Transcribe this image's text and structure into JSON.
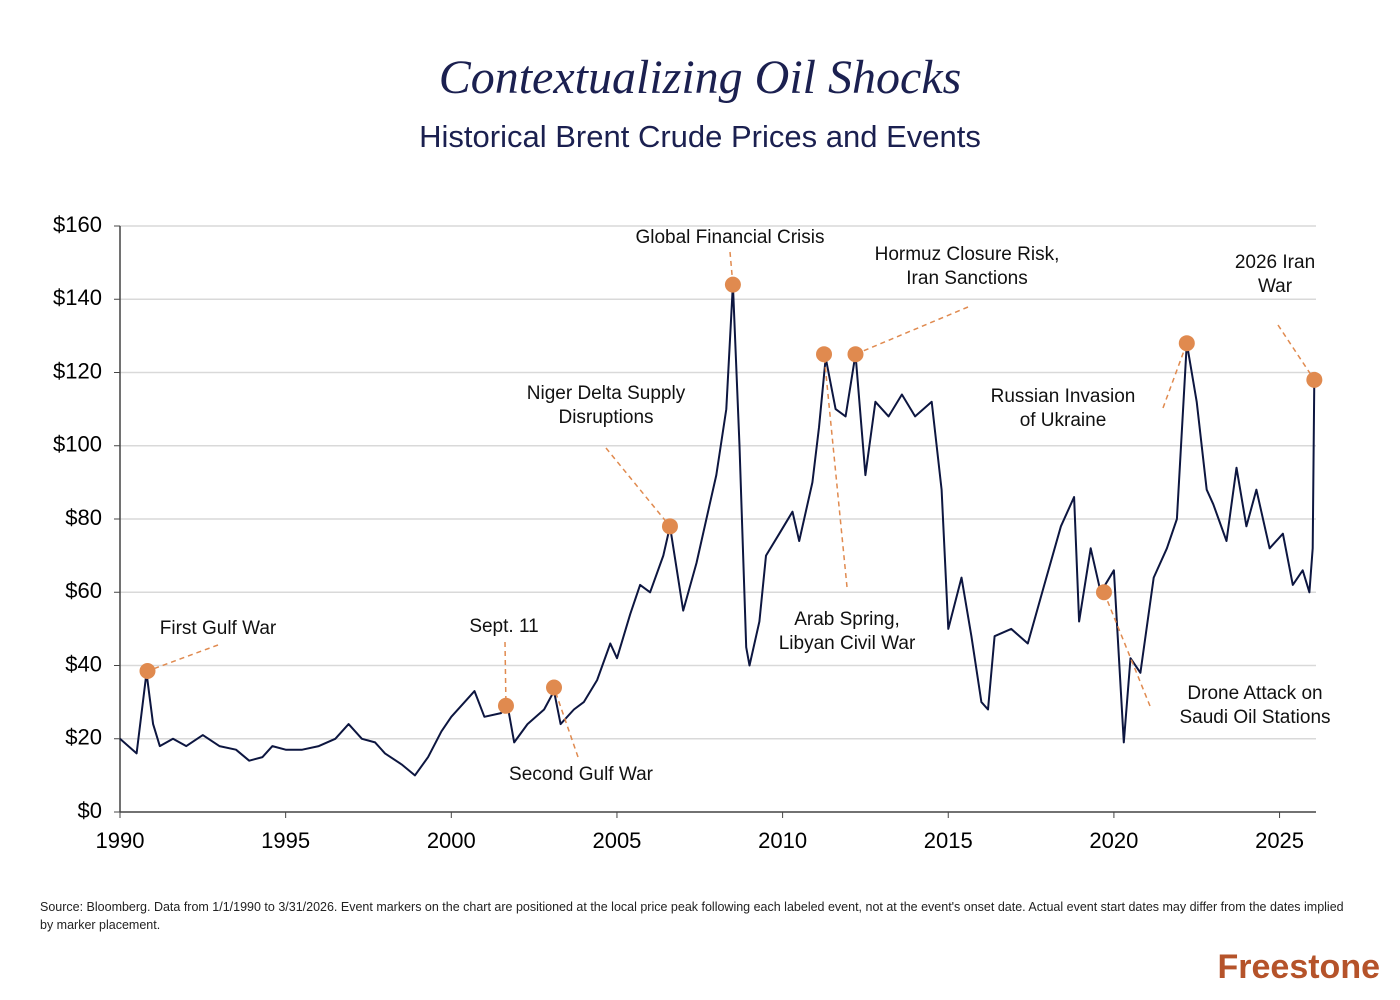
{
  "chart_data": {
    "type": "line",
    "title": "Contextualizing Oil Shocks",
    "subtitle": "Historical Brent Crude Prices and Events",
    "color": "#0d1640",
    "marker_color": "#e08a4f",
    "grid": true,
    "xlim": [
      1990,
      2026.1
    ],
    "xticks": [
      1990,
      1995,
      2000,
      2005,
      2010,
      2015,
      2020,
      2025
    ],
    "ylim": [
      0,
      160
    ],
    "yticks": [
      {
        "value": 0,
        "label": "$0"
      },
      {
        "value": 20,
        "label": "$20"
      },
      {
        "value": 40,
        "label": "$40"
      },
      {
        "value": 60,
        "label": "$60"
      },
      {
        "value": 80,
        "label": "$80"
      },
      {
        "value": 100,
        "label": "$100"
      },
      {
        "value": 120,
        "label": "$120"
      },
      {
        "value": 140,
        "label": "$140"
      },
      {
        "value": 160,
        "label": "$160"
      }
    ],
    "x": [
      1990.0,
      1990.5,
      1990.8,
      1991.0,
      1991.2,
      1991.6,
      1992.0,
      1992.5,
      1993.0,
      1993.5,
      1993.9,
      1994.3,
      1994.6,
      1995.0,
      1995.5,
      1996.0,
      1996.5,
      1996.9,
      1997.3,
      1997.7,
      1998.0,
      1998.5,
      1998.9,
      1999.3,
      1999.7,
      2000.0,
      2000.4,
      2000.7,
      2001.0,
      2001.5,
      2001.7,
      2001.9,
      2002.3,
      2002.8,
      2003.1,
      2003.3,
      2003.7,
      2004.0,
      2004.4,
      2004.8,
      2005.0,
      2005.4,
      2005.7,
      2006.0,
      2006.4,
      2006.6,
      2007.0,
      2007.4,
      2007.8,
      2008.0,
      2008.3,
      2008.5,
      2008.7,
      2008.9,
      2009.0,
      2009.3,
      2009.5,
      2009.9,
      2010.3,
      2010.5,
      2010.9,
      2011.1,
      2011.3,
      2011.6,
      2011.9,
      2012.2,
      2012.5,
      2012.8,
      2013.2,
      2013.6,
      2014.0,
      2014.5,
      2014.8,
      2015.0,
      2015.4,
      2015.7,
      2016.0,
      2016.2,
      2016.4,
      2016.9,
      2017.4,
      2017.9,
      2018.4,
      2018.8,
      2018.95,
      2019.3,
      2019.6,
      2020.0,
      2020.3,
      2020.5,
      2020.8,
      2021.2,
      2021.6,
      2021.9,
      2022.2,
      2022.5,
      2022.8,
      2023.0,
      2023.4,
      2023.7,
      2024.0,
      2024.3,
      2024.7,
      2025.1,
      2025.4,
      2025.7,
      2025.9,
      2026.0,
      2026.05
    ],
    "values": [
      20,
      16,
      38,
      24,
      18,
      20,
      18,
      21,
      18,
      17,
      14,
      15,
      18,
      17,
      17,
      18,
      20,
      24,
      20,
      19,
      16,
      13,
      10,
      15,
      22,
      26,
      30,
      33,
      26,
      27,
      29,
      19,
      24,
      28,
      33,
      24,
      28,
      30,
      36,
      46,
      42,
      54,
      62,
      60,
      70,
      78,
      55,
      68,
      84,
      92,
      110,
      144,
      100,
      45,
      40,
      52,
      70,
      76,
      82,
      74,
      90,
      105,
      124,
      110,
      108,
      125,
      92,
      112,
      108,
      114,
      108,
      112,
      88,
      50,
      64,
      48,
      30,
      28,
      48,
      50,
      46,
      62,
      78,
      86,
      52,
      72,
      60,
      66,
      19,
      42,
      38,
      64,
      72,
      80,
      128,
      112,
      88,
      84,
      74,
      94,
      78,
      88,
      72,
      76,
      62,
      66,
      60,
      72,
      118
    ],
    "events": [
      {
        "label": [
          "First Gulf War"
        ],
        "x": 1990.83,
        "y": 38.5
      },
      {
        "label": [
          "Sept. 11"
        ],
        "x": 2001.65,
        "y": 29
      },
      {
        "label": [
          "Second Gulf War"
        ],
        "x": 2003.1,
        "y": 34
      },
      {
        "label": [
          "Niger Delta Supply",
          "Disruptions"
        ],
        "x": 2006.6,
        "y": 78
      },
      {
        "label": [
          "Global Financial Crisis"
        ],
        "x": 2008.5,
        "y": 144
      },
      {
        "label": [
          "Arab Spring,",
          "Libyan Civil War"
        ],
        "x": 2011.25,
        "y": 125
      },
      {
        "label": [
          "Hormuz  Closure Risk,",
          "Iran Sanctions"
        ],
        "x": 2012.2,
        "y": 125
      },
      {
        "label": [
          "Drone Attack on",
          "Saudi Oil Stations"
        ],
        "x": 2019.7,
        "y": 60
      },
      {
        "label": [
          "Russian Invasion",
          "of Ukraine"
        ],
        "x": 2022.2,
        "y": 128
      },
      {
        "label": [
          "2026 Iran",
          "War"
        ],
        "x": 2026.05,
        "y": 118
      }
    ]
  },
  "footer": {
    "source": "Source: Bloomberg. Data from 1/1/1990 to 3/31/2026. Event markers on the chart are positioned at the local price peak following each labeled event, not at the event's onset date. Actual event start dates may differ from the dates implied by marker placement.",
    "brand": "Freestone"
  }
}
